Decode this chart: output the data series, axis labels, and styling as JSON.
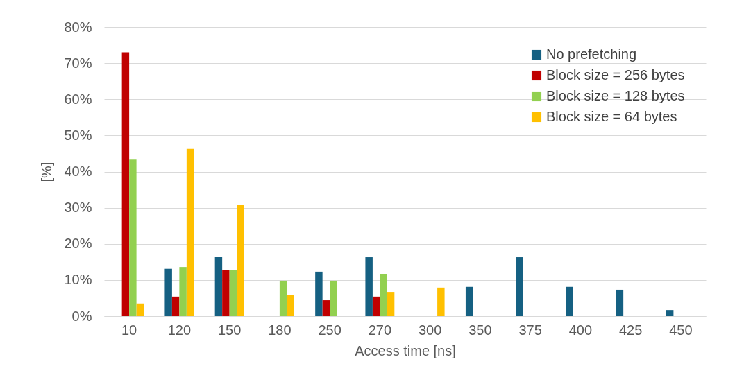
{
  "chart_data": {
    "type": "bar",
    "xlabel": "Access time [ns]",
    "ylabel": "[%]",
    "categories": [
      "10",
      "120",
      "150",
      "180",
      "250",
      "270",
      "300",
      "350",
      "375",
      "400",
      "425",
      "450"
    ],
    "series": [
      {
        "name": "No prefetching",
        "color": "#156082",
        "values": [
          null,
          13.1,
          16.3,
          null,
          12.3,
          16.3,
          null,
          8.1,
          16.3,
          8.1,
          7.3,
          1.7
        ]
      },
      {
        "name": "Block size = 256 bytes",
        "color": "#c00000",
        "values": [
          73,
          5.4,
          12.7,
          null,
          4.4,
          5.4,
          null,
          null,
          null,
          null,
          null,
          null
        ]
      },
      {
        "name": "Block size = 128 bytes",
        "color": "#92d050",
        "values": [
          43.3,
          13.6,
          12.7,
          9.8,
          9.8,
          11.7,
          null,
          null,
          null,
          null,
          null,
          null
        ]
      },
      {
        "name": "Block size = 64 bytes",
        "color": "#ffc000",
        "values": [
          3.5,
          46.3,
          30.9,
          5.8,
          null,
          6.7,
          7.9,
          null,
          null,
          null,
          null,
          null
        ]
      }
    ],
    "ylim": [
      0,
      80
    ],
    "yticks": [
      {
        "value": 0,
        "label": "0%"
      },
      {
        "value": 10,
        "label": "10%"
      },
      {
        "value": 20,
        "label": "20%"
      },
      {
        "value": 30,
        "label": "30%"
      },
      {
        "value": 40,
        "label": "40%"
      },
      {
        "value": 50,
        "label": "50%"
      },
      {
        "value": 60,
        "label": "60%"
      },
      {
        "value": 70,
        "label": "70%"
      },
      {
        "value": 80,
        "label": "80%"
      }
    ],
    "grid": "y",
    "legend": "top right"
  }
}
